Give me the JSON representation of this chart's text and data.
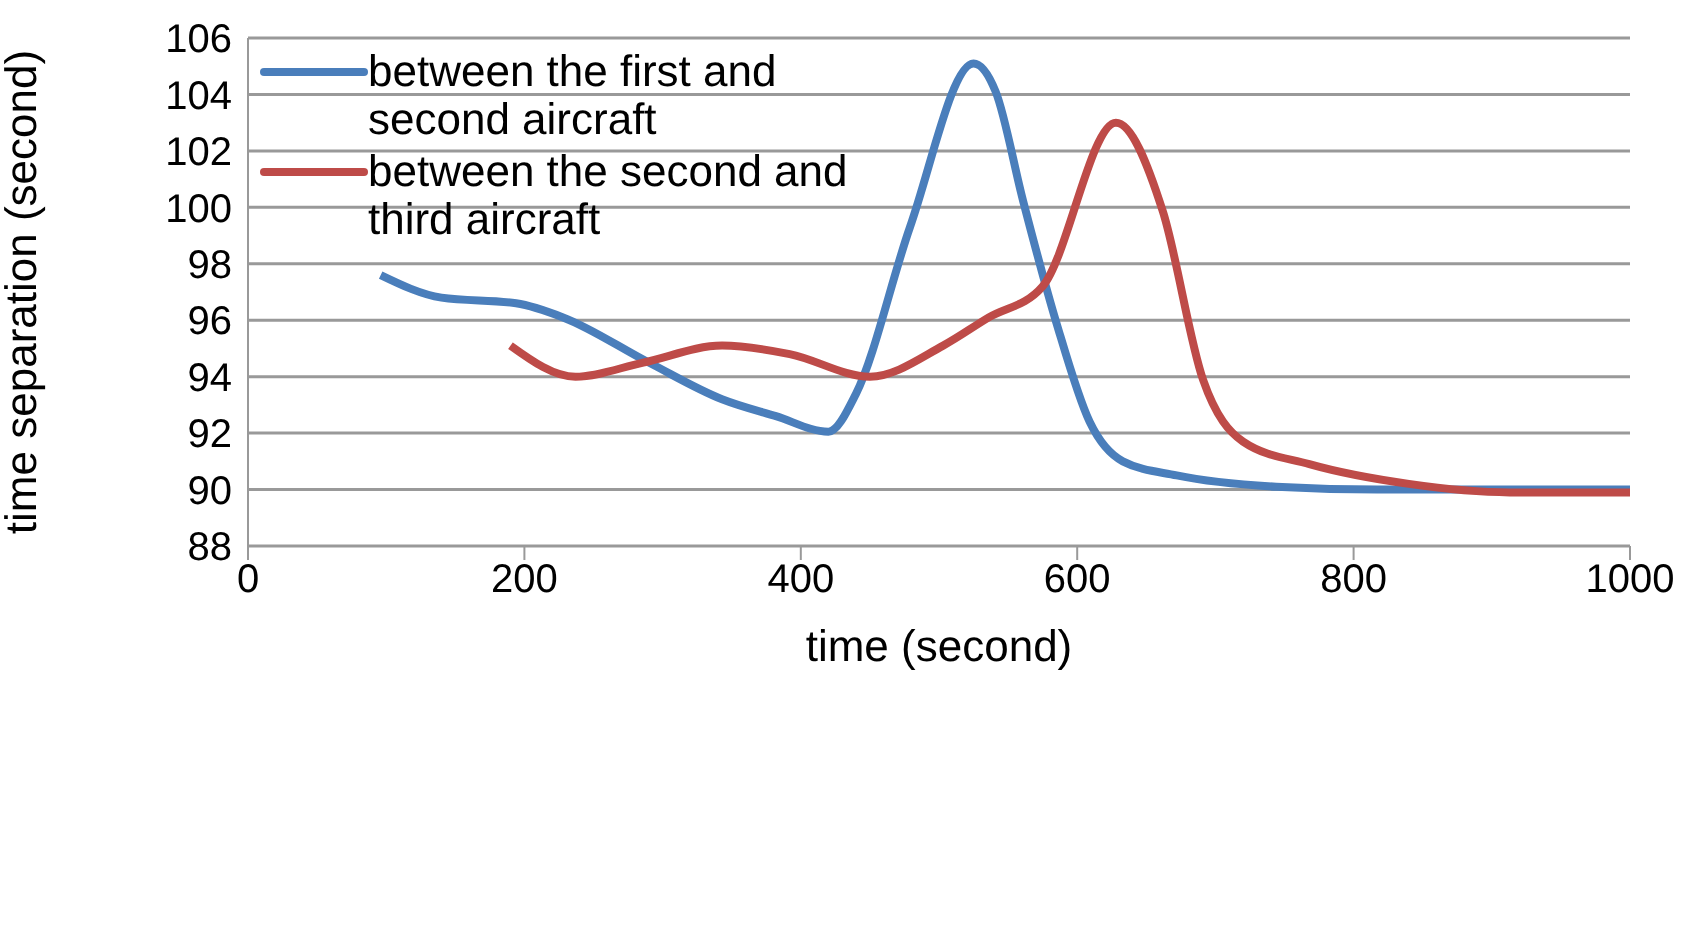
{
  "chart_data": {
    "type": "line",
    "xlabel": "time (second)",
    "ylabel": "time separation (second)",
    "xlim": [
      0,
      1000
    ],
    "xticks": [
      0,
      200,
      400,
      600,
      800,
      1000
    ],
    "ylim": [
      88,
      106
    ],
    "yticks": [
      88,
      90,
      92,
      94,
      96,
      98,
      100,
      102,
      104,
      106
    ],
    "grid": "y",
    "legend": "top left",
    "line_style": "solid",
    "marker": "none",
    "series": [
      {
        "name": "between the first and second aircraft",
        "color": "#4a7ebb",
        "x": [
          96,
          140,
          194,
          228,
          290,
          343,
          382,
          420,
          440,
          479,
          525,
          541,
          561,
          585,
          609,
          633,
          672,
          744,
          817,
          1000
        ],
        "values": [
          97.6,
          96.8,
          96.6,
          96.1,
          94.5,
          93.2,
          92.6,
          92.05,
          93.4,
          99.3,
          105.1,
          104.1,
          100.2,
          95.9,
          92.4,
          91.0,
          90.5,
          90.1,
          90.0,
          90.0
        ]
      },
      {
        "name": "between the second and third aircraft",
        "color": "#be4b48",
        "x": [
          190,
          237,
          286,
          343,
          392,
          450,
          503,
          536,
          575,
          628,
          662,
          691,
          720,
          768,
          840,
          913,
          1000
        ],
        "values": [
          95.1,
          94.0,
          94.5,
          95.1,
          94.8,
          94.0,
          95.1,
          96.1,
          97.2,
          103.0,
          99.85,
          93.9,
          91.7,
          90.9,
          90.2,
          89.9,
          89.9
        ]
      }
    ]
  }
}
